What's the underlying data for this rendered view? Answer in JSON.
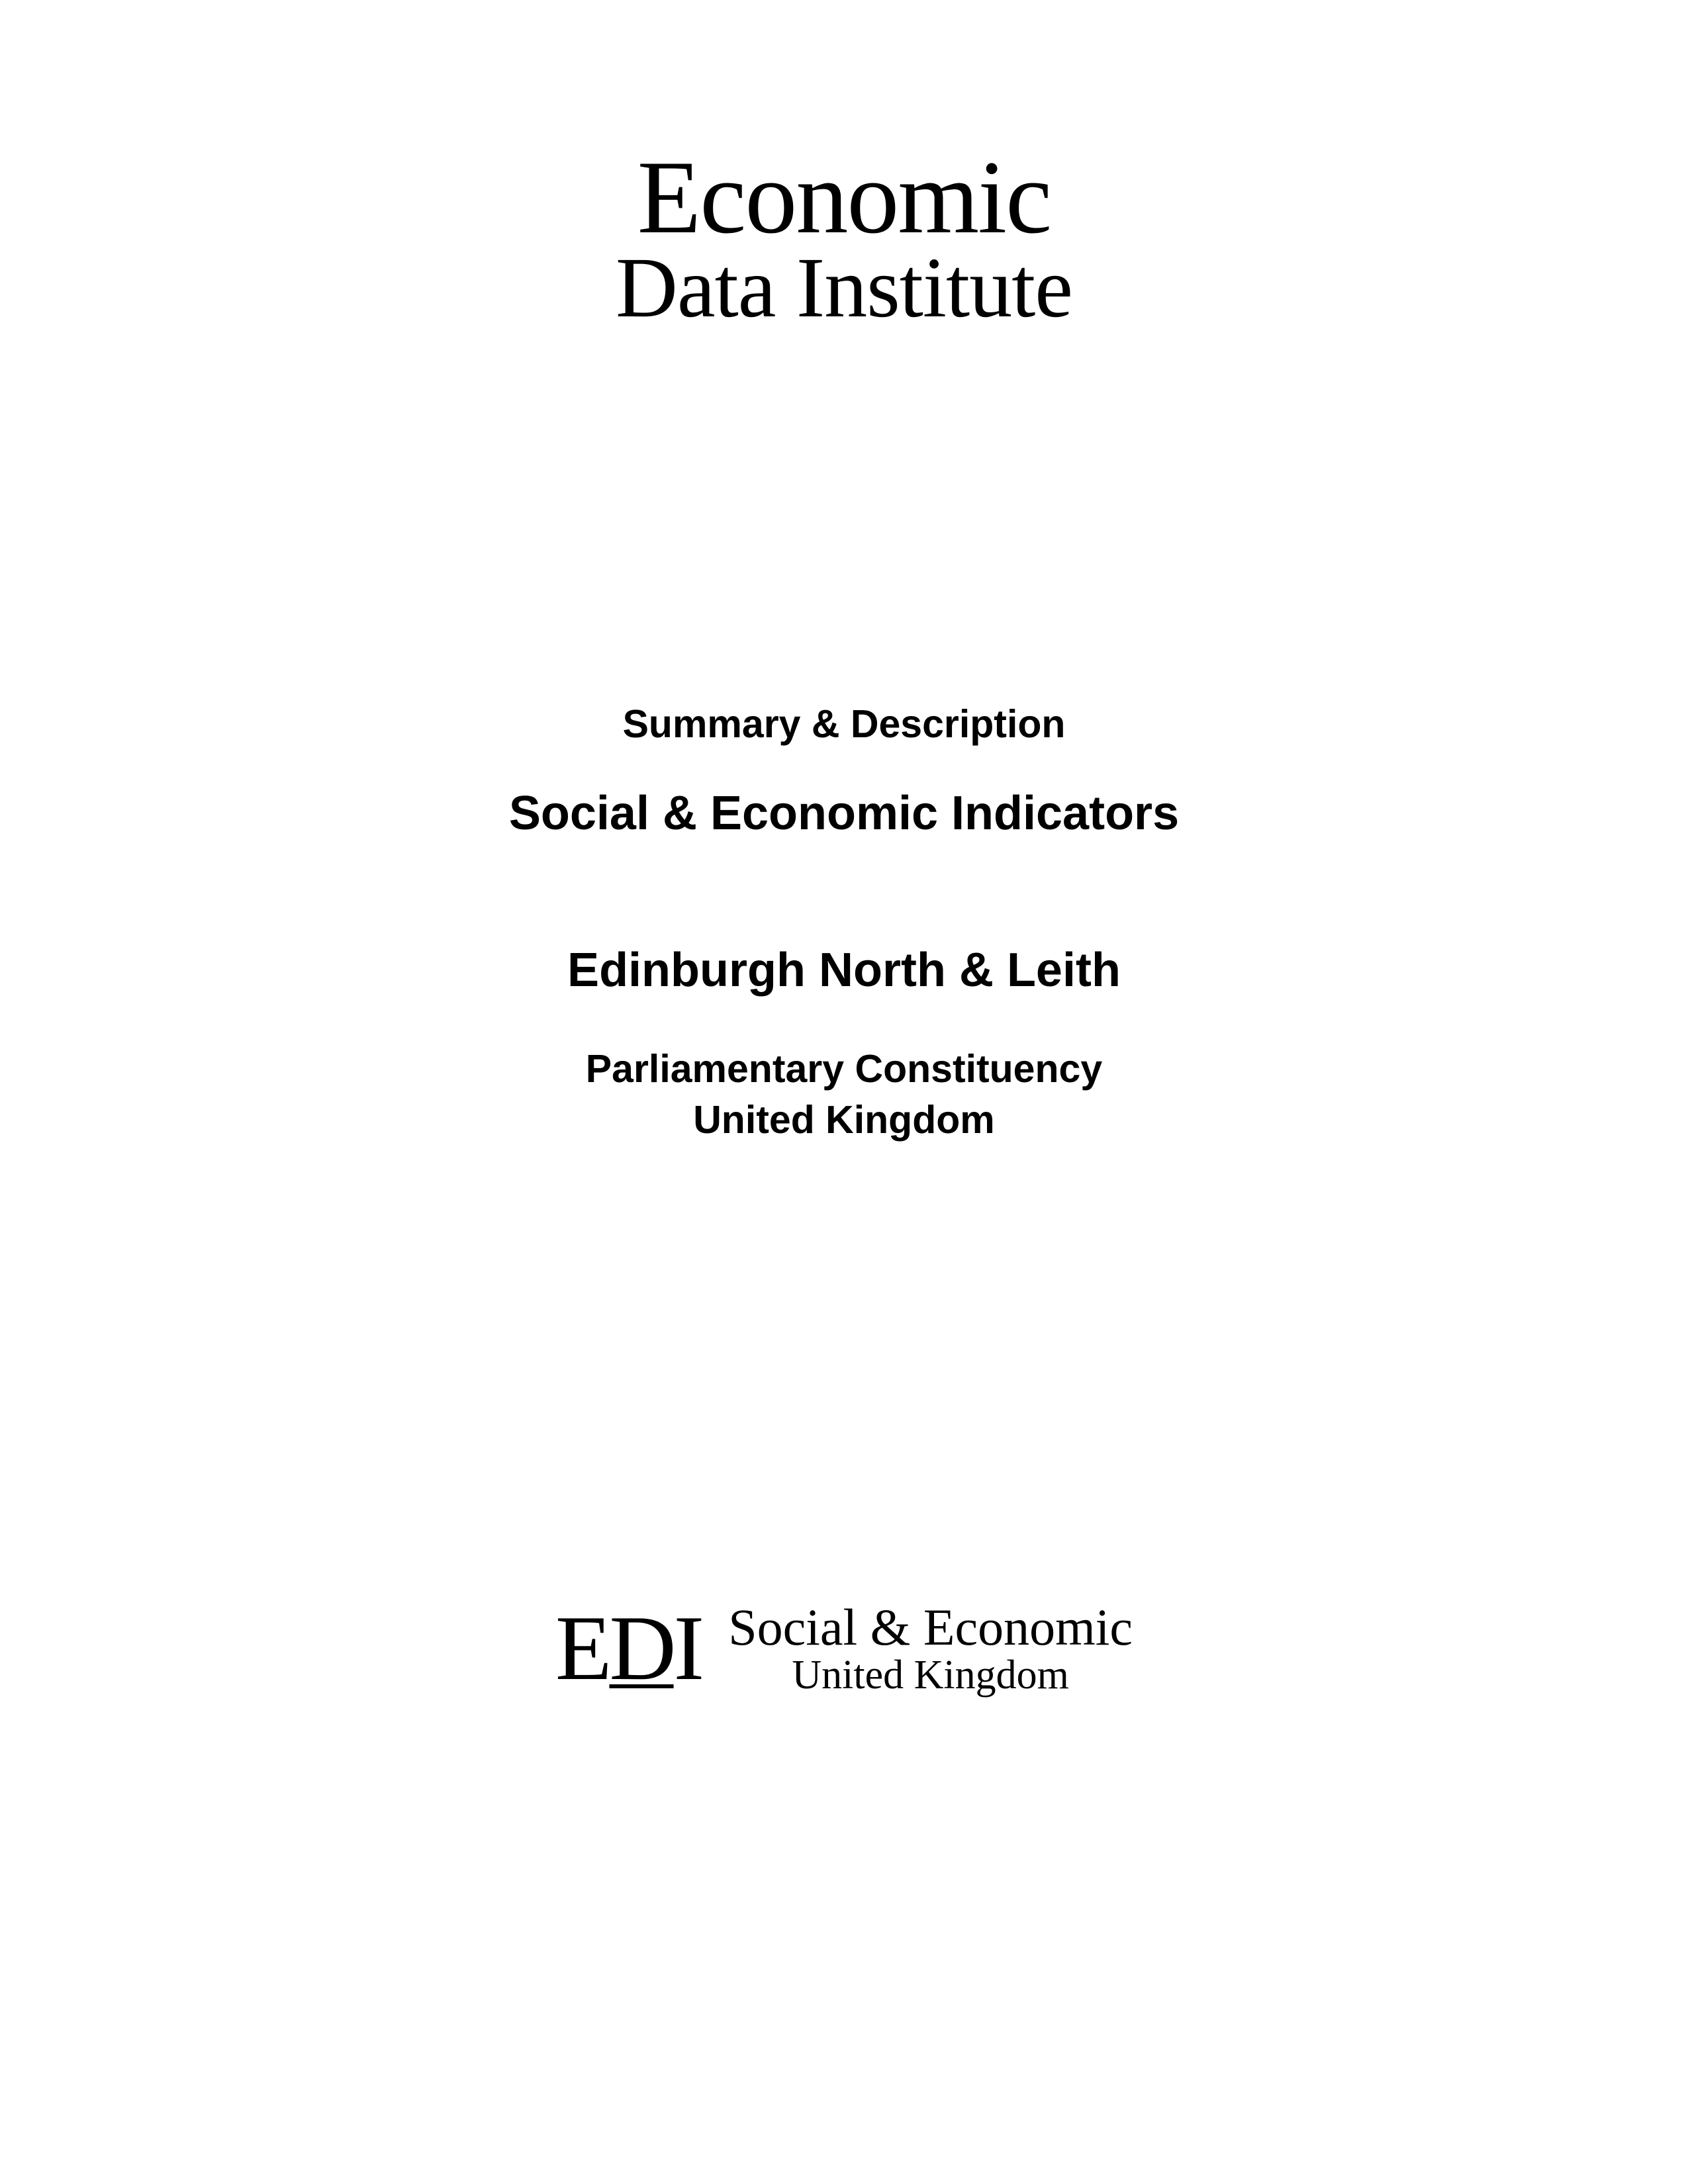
{
  "header": {
    "logo_line1": "Economic",
    "logo_line2": "Data Institute"
  },
  "title_block": {
    "summary": "Summary & Description",
    "indicators": "Social & Economic Indicators",
    "location": "Edinburgh North & Leith",
    "constituency_line1": "Parliamentary Constituency",
    "constituency_line2": "United Kingdom"
  },
  "footer": {
    "mark_e": "E",
    "mark_d": "D",
    "mark_i": "I",
    "line1": "Social & Economic",
    "line2": "United Kingdom"
  },
  "colors": {
    "background": "#ffffff",
    "text": "#000000"
  }
}
